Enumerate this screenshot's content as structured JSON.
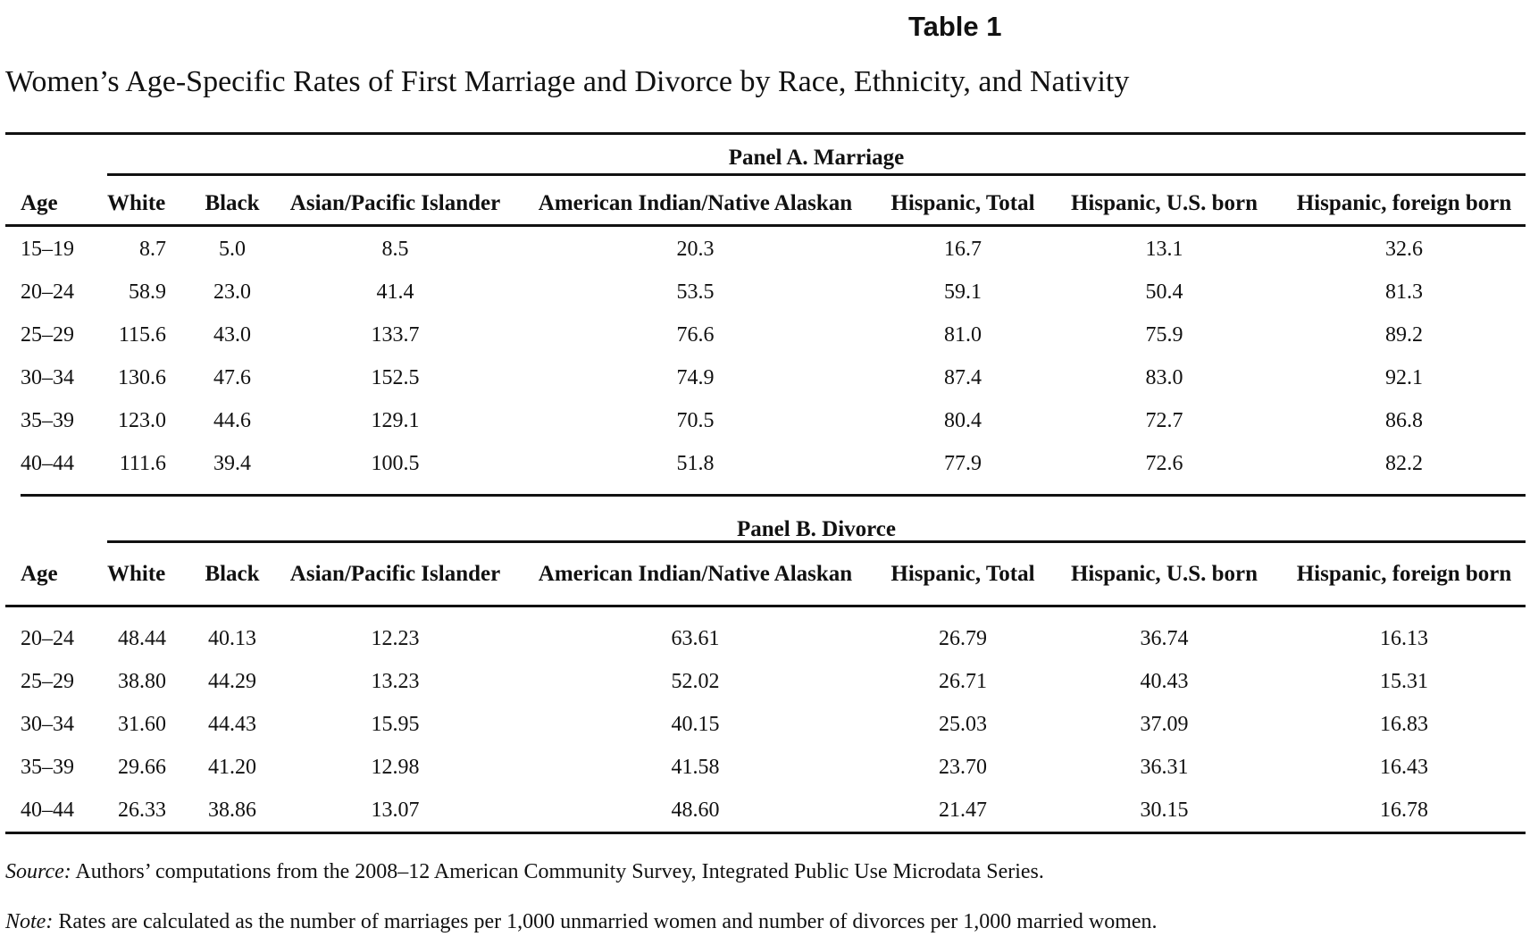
{
  "table_label": "Table 1",
  "title": "Women’s Age-Specific Rates of First Marriage and Divorce by Race, Ethnicity, and Nativity",
  "columns": [
    "Age",
    "White",
    "Black",
    "Asian/Pacific Islander",
    "American Indian/Native Alaskan",
    "Hispanic, Total",
    "Hispanic, U.S. born",
    "Hispanic, foreign born"
  ],
  "panel_a": {
    "title": "Panel A. Marriage",
    "rows": [
      [
        "15–19",
        "8.7",
        "5.0",
        "8.5",
        "20.3",
        "16.7",
        "13.1",
        "32.6"
      ],
      [
        "20–24",
        "58.9",
        "23.0",
        "41.4",
        "53.5",
        "59.1",
        "50.4",
        "81.3"
      ],
      [
        "25–29",
        "115.6",
        "43.0",
        "133.7",
        "76.6",
        "81.0",
        "75.9",
        "89.2"
      ],
      [
        "30–34",
        "130.6",
        "47.6",
        "152.5",
        "74.9",
        "87.4",
        "83.0",
        "92.1"
      ],
      [
        "35–39",
        "123.0",
        "44.6",
        "129.1",
        "70.5",
        "80.4",
        "72.7",
        "86.8"
      ],
      [
        "40–44",
        "111.6",
        "39.4",
        "100.5",
        "51.8",
        "77.9",
        "72.6",
        "82.2"
      ]
    ]
  },
  "panel_b": {
    "title": "Panel B. Divorce",
    "rows": [
      [
        "20–24",
        "48.44",
        "40.13",
        "12.23",
        "63.61",
        "26.79",
        "36.74",
        "16.13"
      ],
      [
        "25–29",
        "38.80",
        "44.29",
        "13.23",
        "52.02",
        "26.71",
        "40.43",
        "15.31"
      ],
      [
        "30–34",
        "31.60",
        "44.43",
        "15.95",
        "40.15",
        "25.03",
        "37.09",
        "16.83"
      ],
      [
        "35–39",
        "29.66",
        "41.20",
        "12.98",
        "41.58",
        "23.70",
        "36.31",
        "16.43"
      ],
      [
        "40–44",
        "26.33",
        "38.86",
        "13.07",
        "48.60",
        "21.47",
        "30.15",
        "16.78"
      ]
    ]
  },
  "source": {
    "label": "Source:",
    "text": " Authors’ computations from the 2008–12 American Community Survey, Integrated Public Use Microdata Series."
  },
  "note": {
    "label": "Note:",
    "text": " Rates are calculated as the number of marriages per 1,000 unmarried women and number of divorces per 1,000 married women."
  }
}
